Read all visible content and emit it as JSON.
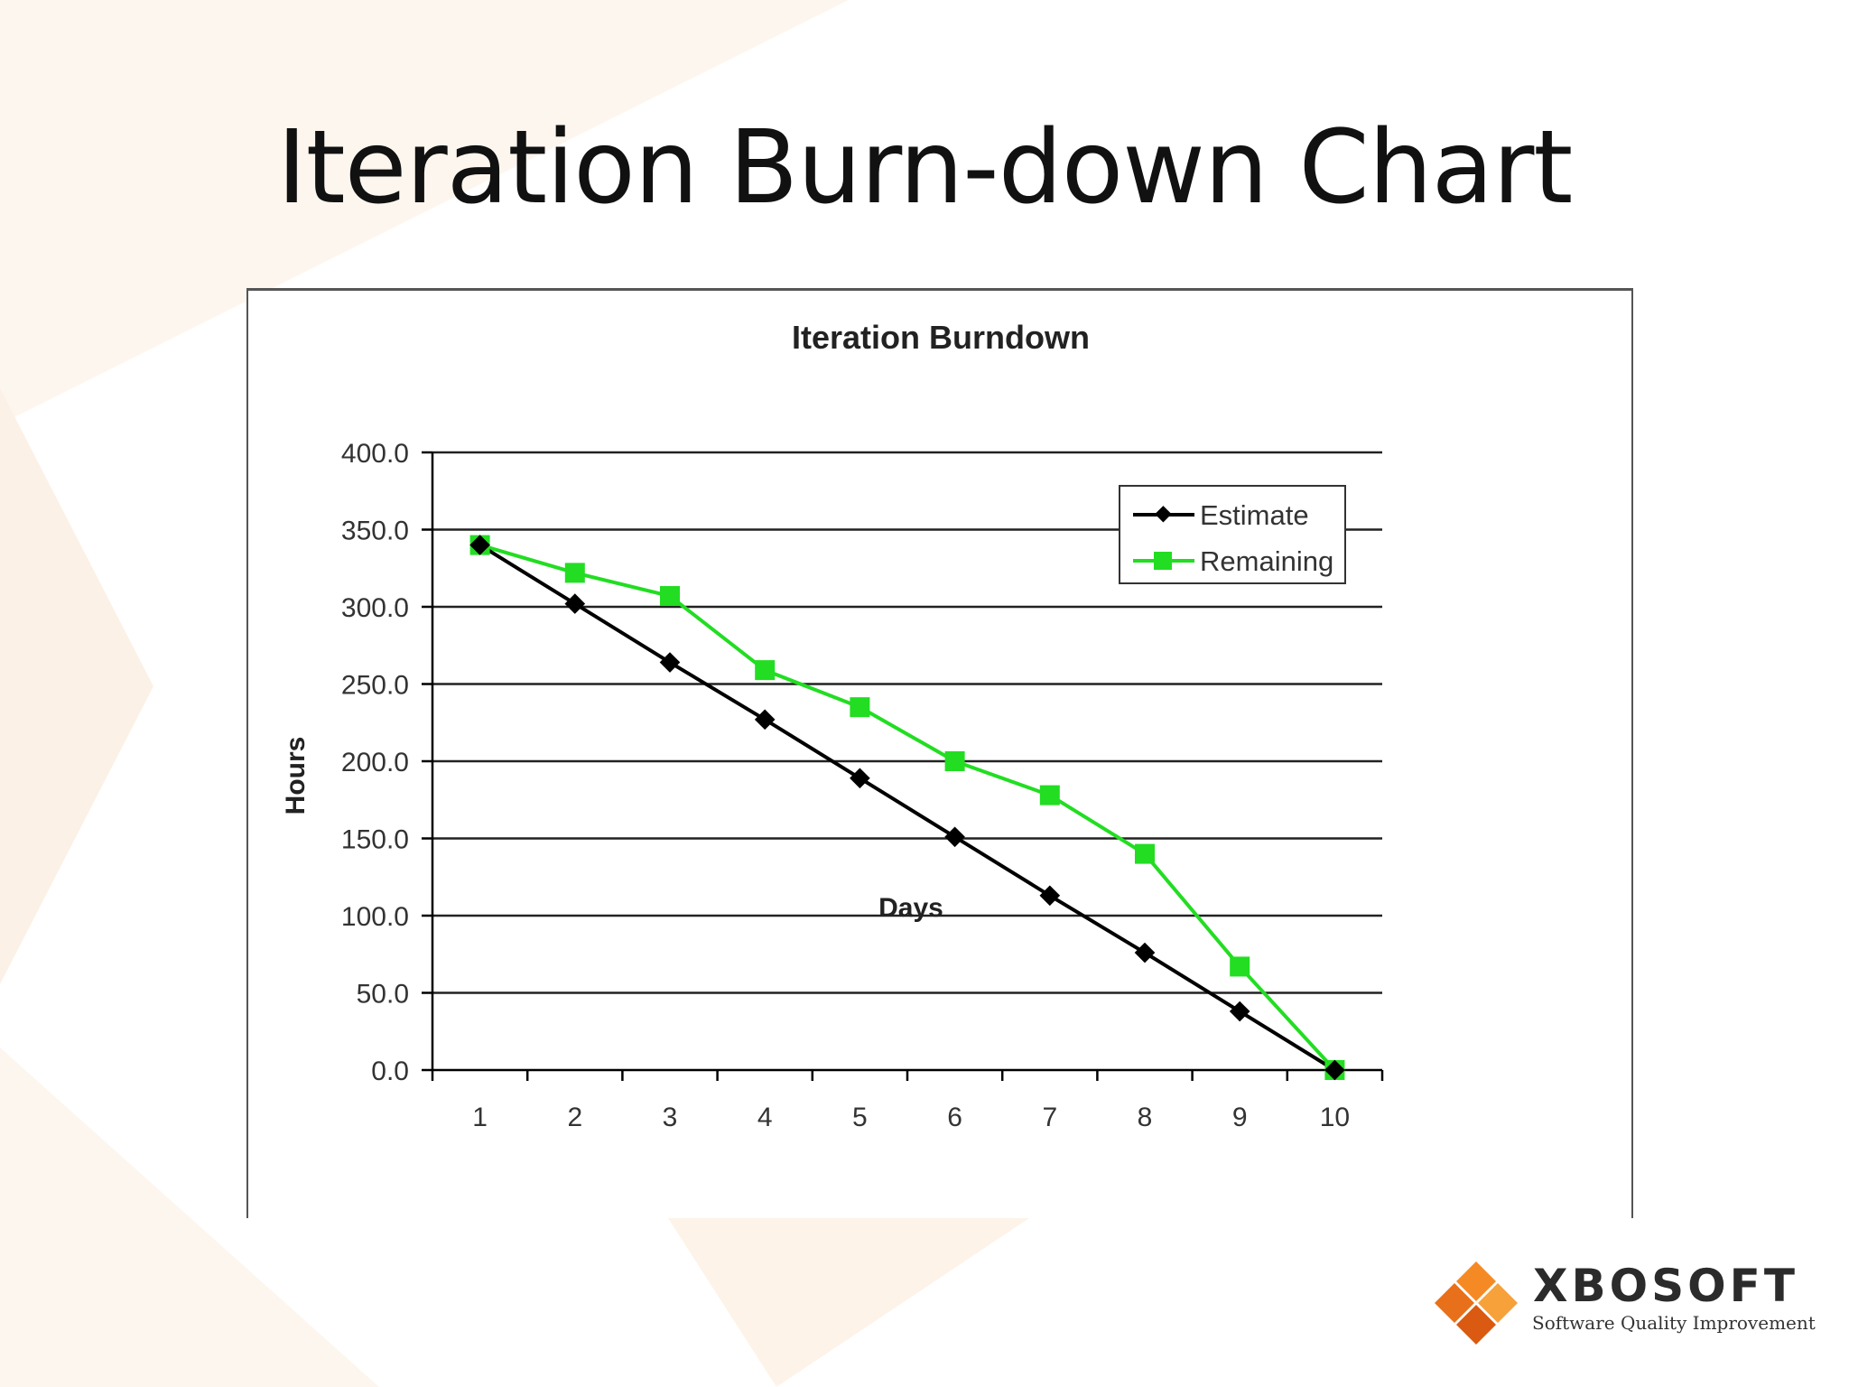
{
  "slide": {
    "title": "Iteration Burn-down Chart"
  },
  "colors": {
    "estimate": "#000000",
    "remaining": "#22dd22",
    "grid": "#222222",
    "logo_orange": "#f07a1c",
    "logo_dark_orange": "#d95a10",
    "background_tint": "#fdf5ec"
  },
  "chart_data": {
    "type": "line",
    "title": "Iteration Burndown",
    "xlabel": "Days",
    "ylabel": "Hours",
    "x": [
      1,
      2,
      3,
      4,
      5,
      6,
      7,
      8,
      9,
      10
    ],
    "x_tick_labels": [
      "1",
      "2",
      "3",
      "4",
      "5",
      "6",
      "7",
      "8",
      "9",
      "10"
    ],
    "ylim": [
      0,
      400
    ],
    "y_tick_labels": [
      "0.0",
      "50.0",
      "100.0",
      "150.0",
      "200.0",
      "250.0",
      "300.0",
      "350.0",
      "400.0"
    ],
    "y_ticks": [
      0,
      50,
      100,
      150,
      200,
      250,
      300,
      350,
      400
    ],
    "grid": true,
    "legend_position": "top-right",
    "series": [
      {
        "name": "Estimate",
        "marker": "diamond",
        "values": [
          340,
          302,
          264,
          227,
          189,
          151,
          113,
          76,
          38,
          0
        ]
      },
      {
        "name": "Remaining",
        "marker": "square",
        "values": [
          340,
          322,
          307,
          259,
          235,
          200,
          178,
          140,
          67,
          0
        ]
      }
    ]
  },
  "logo": {
    "name": "XBOSOFT",
    "tagline": "Software Quality Improvement"
  }
}
